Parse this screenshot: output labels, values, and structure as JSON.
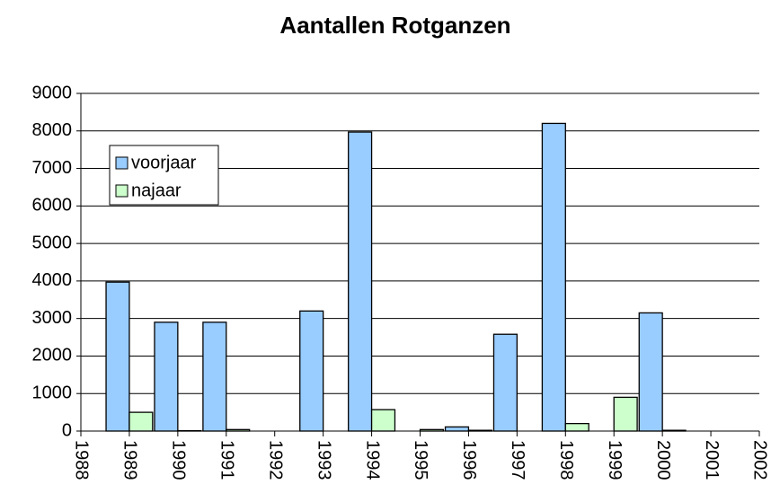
{
  "chart_data": {
    "type": "bar",
    "title": "Aantallen Rotganzen",
    "x": [
      1989,
      1990,
      1991,
      1992,
      1993,
      1994,
      1995,
      1996,
      1997,
      1998,
      1999,
      2000
    ],
    "series": [
      {
        "name": "voorjaar",
        "color": "#99ccff",
        "values": [
          3970,
          2900,
          2900,
          0,
          3200,
          7970,
          0,
          110,
          2580,
          8200,
          0,
          3150
        ]
      },
      {
        "name": "najaar",
        "color": "#ccffcc",
        "values": [
          500,
          10,
          40,
          0,
          0,
          570,
          40,
          20,
          0,
          200,
          900,
          20
        ]
      }
    ],
    "xlim": [
      1988,
      2002
    ],
    "xticks": [
      1988,
      1989,
      1990,
      1991,
      1992,
      1993,
      1994,
      1995,
      1996,
      1997,
      1998,
      1999,
      2000,
      2001,
      2002
    ],
    "ylim": [
      0,
      9000
    ],
    "yticks": [
      0,
      1000,
      2000,
      3000,
      4000,
      5000,
      6000,
      7000,
      8000,
      9000
    ],
    "grid": true,
    "legend": "upper-left"
  }
}
